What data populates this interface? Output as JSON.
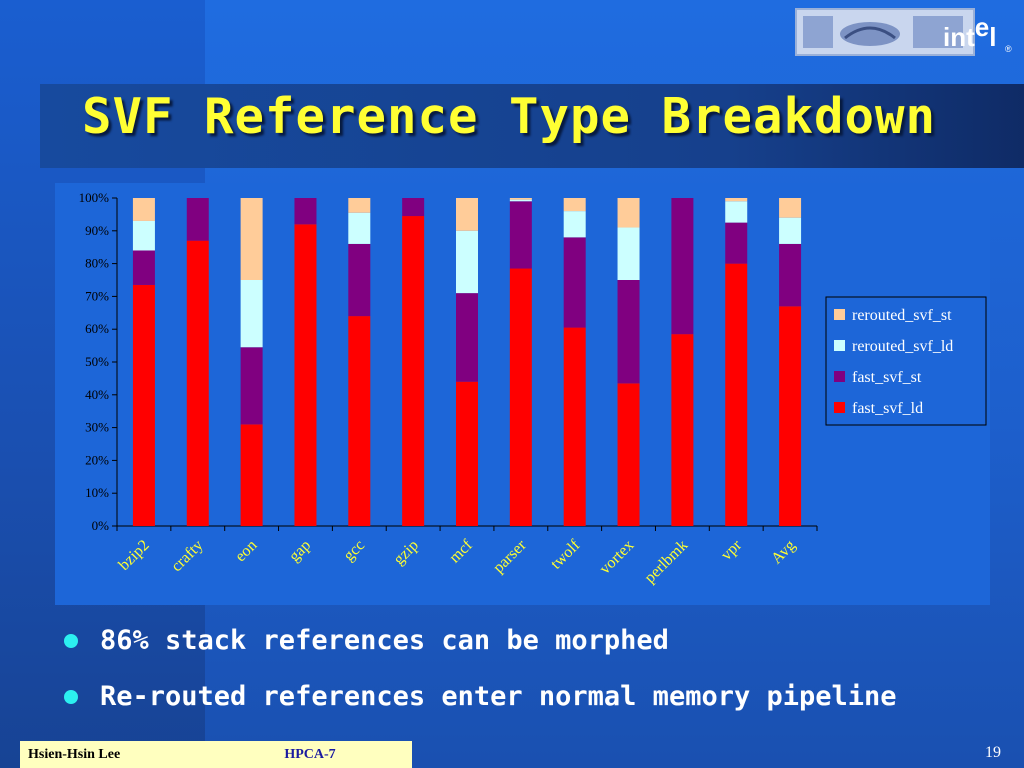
{
  "slide": {
    "title": "SVF Reference Type Breakdown",
    "bullets": [
      "86% stack references can be morphed",
      "Re-routed references enter normal memory pipeline"
    ],
    "footer_author": "Hsien-Hsin Lee",
    "footer_venue": "HPCA-7",
    "page_number": "19",
    "logo_text": "int",
    "logo_text_sub": "e",
    "logo_text_end": "l",
    "logo_mark": "®"
  },
  "chart_data": {
    "type": "bar",
    "stacked": true,
    "categories": [
      "bzip2",
      "crafty",
      "eon",
      "gap",
      "gcc",
      "gzip",
      "mcf",
      "parser",
      "twolf",
      "vortex",
      "perlbmk",
      "vpr",
      "Avg"
    ],
    "series": [
      {
        "name": "fast_svf_ld",
        "color": "#ff0000",
        "values": [
          73.5,
          87,
          31,
          92,
          64,
          94.5,
          44,
          78.5,
          60.5,
          43.5,
          58.5,
          80,
          67
        ]
      },
      {
        "name": "fast_svf_st",
        "color": "#800080",
        "values": [
          10.5,
          13,
          23.5,
          8,
          22,
          5.5,
          27,
          20.5,
          27.5,
          31.5,
          41.5,
          12.5,
          19
        ]
      },
      {
        "name": "rerouted_svf_ld",
        "color": "#ccffff",
        "values": [
          9,
          0,
          20.5,
          0,
          9.5,
          0,
          19,
          0.5,
          8,
          16,
          0,
          6.5,
          8
        ]
      },
      {
        "name": "rerouted_svf_st",
        "color": "#ffcc99",
        "values": [
          7,
          0,
          25,
          0,
          4.5,
          0,
          10,
          0.5,
          4,
          9,
          0,
          1,
          6
        ]
      }
    ],
    "ylim": [
      0,
      100
    ],
    "yticks": [
      "0%",
      "10%",
      "20%",
      "30%",
      "40%",
      "50%",
      "60%",
      "70%",
      "80%",
      "90%",
      "100%"
    ],
    "legend": [
      "rerouted_svf_st",
      "rerouted_svf_ld",
      "fast_svf_st",
      "fast_svf_ld"
    ],
    "legend_position": "right",
    "grid": false
  }
}
